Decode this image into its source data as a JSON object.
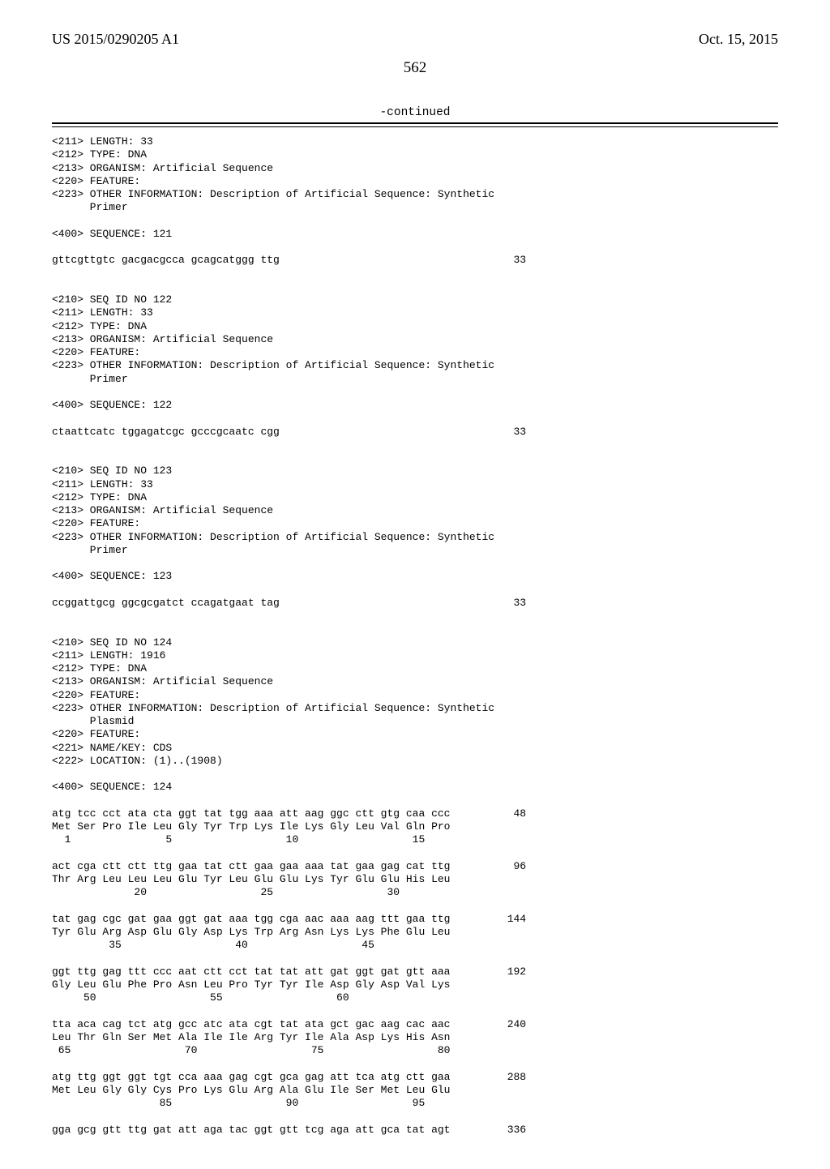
{
  "header": {
    "pubnum": "US 2015/0290205 A1",
    "pubdate": "Oct. 15, 2015"
  },
  "pagenum": "562",
  "continued": "-continued",
  "seq": {
    "block1": "<211> LENGTH: 33\n<212> TYPE: DNA\n<213> ORGANISM: Artificial Sequence\n<220> FEATURE:\n<223> OTHER INFORMATION: Description of Artificial Sequence: Synthetic\n      Primer\n\n<400> SEQUENCE: 121\n\ngttcgttgtc gacgacgcca gcagcatggg ttg                                     33\n\n\n<210> SEQ ID NO 122\n<211> LENGTH: 33\n<212> TYPE: DNA\n<213> ORGANISM: Artificial Sequence\n<220> FEATURE:\n<223> OTHER INFORMATION: Description of Artificial Sequence: Synthetic\n      Primer\n\n<400> SEQUENCE: 122\n\nctaattcatc tggagatcgc gcccgcaatc cgg                                     33\n\n\n<210> SEQ ID NO 123\n<211> LENGTH: 33\n<212> TYPE: DNA\n<213> ORGANISM: Artificial Sequence\n<220> FEATURE:\n<223> OTHER INFORMATION: Description of Artificial Sequence: Synthetic\n      Primer\n\n<400> SEQUENCE: 123\n\nccggattgcg ggcgcgatct ccagatgaat tag                                     33\n\n\n<210> SEQ ID NO 124\n<211> LENGTH: 1916\n<212> TYPE: DNA\n<213> ORGANISM: Artificial Sequence\n<220> FEATURE:\n<223> OTHER INFORMATION: Description of Artificial Sequence: Synthetic\n      Plasmid\n<220> FEATURE:\n<221> NAME/KEY: CDS\n<222> LOCATION: (1)..(1908)\n\n<400> SEQUENCE: 124\n\natg tcc cct ata cta ggt tat tgg aaa att aag ggc ctt gtg caa ccc          48\nMet Ser Pro Ile Leu Gly Tyr Trp Lys Ile Lys Gly Leu Val Gln Pro\n  1               5                  10                  15\n\nact cga ctt ctt ttg gaa tat ctt gaa gaa aaa tat gaa gag cat ttg          96\nThr Arg Leu Leu Leu Glu Tyr Leu Glu Glu Lys Tyr Glu Glu His Leu\n             20                  25                  30\n\ntat gag cgc gat gaa ggt gat aaa tgg cga aac aaa aag ttt gaa ttg         144\nTyr Glu Arg Asp Glu Gly Asp Lys Trp Arg Asn Lys Lys Phe Glu Leu\n         35                  40                  45\n\nggt ttg gag ttt ccc aat ctt cct tat tat att gat ggt gat gtt aaa         192\nGly Leu Glu Phe Pro Asn Leu Pro Tyr Tyr Ile Asp Gly Asp Val Lys\n     50                  55                  60\n\ntta aca cag tct atg gcc atc ata cgt tat ata gct gac aag cac aac         240\nLeu Thr Gln Ser Met Ala Ile Ile Arg Tyr Ile Ala Asp Lys His Asn\n 65                  70                  75                  80\n\natg ttg ggt ggt tgt cca aaa gag cgt gca gag att tca atg ctt gaa         288\nMet Leu Gly Gly Cys Pro Lys Glu Arg Ala Glu Ile Ser Met Leu Glu\n                 85                  90                  95\n\ngga gcg gtt ttg gat att aga tac ggt gtt tcg aga att gca tat agt         336"
  }
}
